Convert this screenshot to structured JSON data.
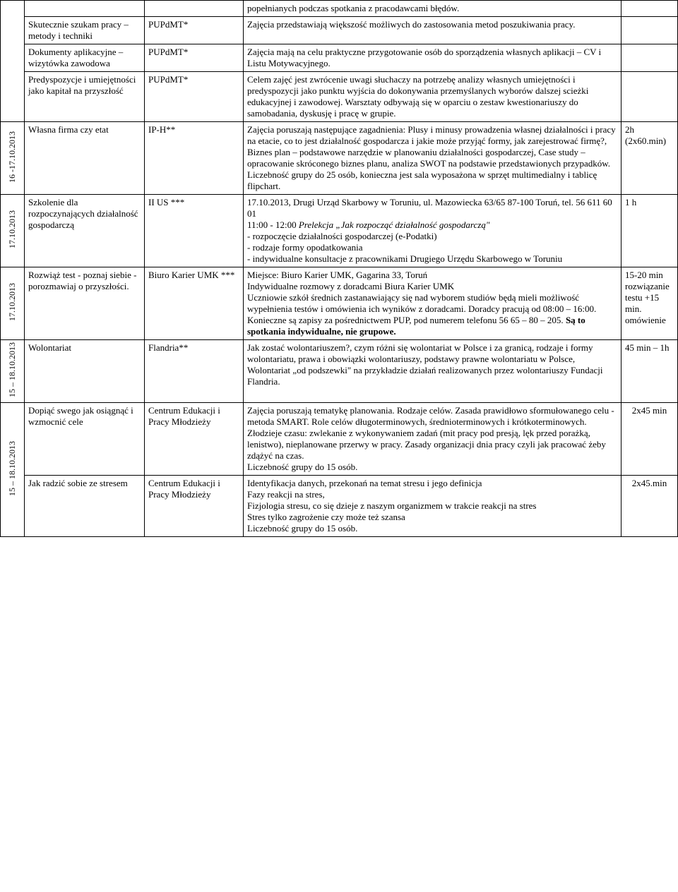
{
  "rows": {
    "r0": {
      "desc": "popełnianych podczas spotkania z pracodawcami błędów."
    },
    "r1": {
      "topic": "Skutecznie szukam pracy – metody i techniki",
      "org": "PUPdMT*",
      "desc": "Zajęcia przedstawiają większość możliwych do zastosowania metod poszukiwania pracy."
    },
    "r2": {
      "topic": "Dokumenty aplikacyjne – wizytówka zawodowa",
      "org": "PUPdMT*",
      "desc": "Zajęcia mają na celu praktyczne przygotowanie osób do sporządzenia własnych aplikacji – CV i Listu Motywacyjnego."
    },
    "r3": {
      "topic": "Predyspozycje i umiejętności jako kapitał na przyszłość",
      "org": "PUPdMT*",
      "desc": "Celem zajęć jest zwrócenie uwagi słuchaczy na potrzebę analizy własnych umiejętności i predyspozycji jako punktu wyjścia do dokonywania przemyślanych wyborów dalszej scieżki edukacyjnej i zawodowej. Warsztaty odbywają się w oparciu o zestaw kwestionariuszy do samobadania, dyskusję i pracę w grupie."
    },
    "r4": {
      "date": "16 -17.10.2013",
      "topic": "Własna firma czy etat",
      "org": "IP-H**",
      "desc": "Zajęcia poruszają następujące zagadnienia: Plusy i minusy prowadzenia własnej działalności i pracy na etacie, co to jest działalność gospodarcza i jakie może przyjąć formy, jak zarejestrować firmę?, Biznes plan – podstawowe narzędzie w planowaniu działalności gospodarczej, Case study – opracowanie skróconego biznes planu, analiza SWOT na podstawie przedstawionych przypadków.\nLiczebność grupy do 25 osób, konieczna jest sala wyposażona w sprzęt multimedialny i tablicę flipchart.",
      "time": "2h (2x60.min)"
    },
    "r5": {
      "date": "17.10.2013",
      "topic": "Szkolenie dla rozpoczynających działalność gospodarczą",
      "org": "II US ***",
      "desc_l1": "17.10.2013, Drugi Urząd Skarbowy w Toruniu, ul. Mazowiecka 63/65  87-100 Toruń, tel. 56 611 60 01",
      "desc_l2a": "11:00 -  12:00 ",
      "desc_l2b": "Prelekcja „Jak rozpocząć działalność gospodarczą\"",
      "desc_l3": "   - rozpoczęcie działalności gospodarczej (e-Podatki)",
      "desc_l4": "         - rodzaje formy opodatkowania",
      "desc_l5": "  - indywidualne konsultacje z pracownikami Drugiego Urzędu Skarbowego  w Toruniu",
      "time": "1 h"
    },
    "r6": {
      "date": "17.10.2013",
      "topic": " Rozwiąż test - poznaj siebie - porozmawiaj o przyszłości.",
      "org": "Biuro Karier UMK ***",
      "desc_a": "Miejsce: Biuro Karier UMK, Gagarina 33, Toruń\nIndywidualne rozmowy z doradcami Biura Karier UMK\nUczniowie szkół średnich zastanawiający się nad wyborem studiów będą mieli możliwość wypełnienia testów i omówienia ich wyników z doradcami. Doradcy pracują od 08:00 – 16:00. Konieczne są zapisy za pośrednictwem PUP, pod numerem telefonu 56 65 – 80 – 205. ",
      "desc_b": "Są to spotkania indywidualne, nie grupowe.",
      "time": "15-20 min rozwiązanie testu +15 min. omówienie"
    },
    "r7": {
      "date": "15 – 18.10.2013",
      "topic": "Wolontariat",
      "org": "Flandria**",
      "desc": "Jak zostać wolontariuszem?, czym różni się wolontariat w Polsce i za granicą, rodzaje i formy wolontariatu, prawa i obowiązki wolontariuszy, podstawy prawne wolontariatu w Polsce, Wolontariat „od podszewki\" na przykładzie działań realizowanych przez wolontariuszy Fundacji Flandria.",
      "time": "45 min –  1h"
    },
    "r8": {
      "date": "15 – 18.10.2013",
      "topic": "Dopiąć swego jak osiągnąć i wzmocnić cele",
      "org": "Centrum Edukacji i Pracy Młodzieży",
      "desc": "Zajęcia poruszają tematykę  planowania. Rodzaje celów.  Zasada prawidłowo sformułowanego celu - metoda SMART. Role celów długoterminowych, średnioterminowych i krótkoterminowych.  Złodzieje czasu: zwlekanie z wykonywaniem zadań (mit pracy pod presją, lęk przed porażką, lenistwo), nieplanowane przerwy w pracy.  Zasady organizacji dnia pracy czyli jak pracować żeby zdążyć na czas.\nLiczebność grupy do 15 osób.",
      "time": "2x45 min"
    },
    "r9": {
      "topic": "Jak radzić sobie ze stresem",
      "org": "Centrum Edukacji i Pracy Młodzieży",
      "desc": "Identyfikacja danych, przekonań na temat stresu i jego definicja\nFazy reakcji na stres,\nFizjologia stresu, co się dzieje z naszym organizmem w trakcie  reakcji na stres\nStres tylko zagrożenie czy może też szansa\nLiczebność grupy do 15 osób.",
      "time": "2x45.min"
    }
  }
}
